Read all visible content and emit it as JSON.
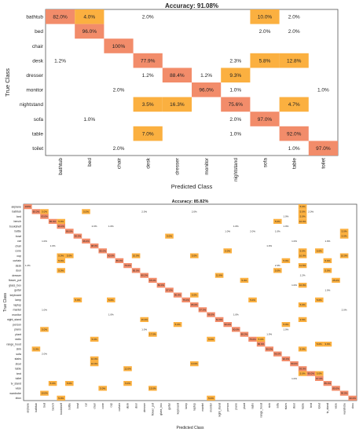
{
  "colors": {
    "high": "#f28c6a",
    "mid": "#fbb040",
    "low": "#fde08a",
    "grid": "#dddddd",
    "frame": "#555555",
    "text": "#222222"
  },
  "chart_data": [
    {
      "type": "heatmap",
      "title": "Accuracy: 91.08%",
      "xlabel": "Predicted Class",
      "ylabel": "True Class",
      "x_categories": [
        "bathtub",
        "bed",
        "chair",
        "desk",
        "dresser",
        "monitor",
        "nightstand",
        "sofa",
        "table",
        "toilet"
      ],
      "y_categories": [
        "bathtub",
        "bed",
        "chair",
        "desk",
        "dresser",
        "monitor",
        "nightstand",
        "sofa",
        "table",
        "toilet"
      ],
      "cells": [
        {
          "row": 0,
          "col": 0,
          "value": 82.0
        },
        {
          "row": 0,
          "col": 1,
          "value": 4.0
        },
        {
          "row": 0,
          "col": 3,
          "value": 2.0
        },
        {
          "row": 0,
          "col": 7,
          "value": 10.0
        },
        {
          "row": 0,
          "col": 8,
          "value": 2.0
        },
        {
          "row": 1,
          "col": 1,
          "value": 96.0
        },
        {
          "row": 1,
          "col": 7,
          "value": 2.0
        },
        {
          "row": 1,
          "col": 8,
          "value": 2.0
        },
        {
          "row": 2,
          "col": 2,
          "value": 100
        },
        {
          "row": 3,
          "col": 0,
          "value": 1.2
        },
        {
          "row": 3,
          "col": 3,
          "value": 77.9
        },
        {
          "row": 3,
          "col": 6,
          "value": 2.3
        },
        {
          "row": 3,
          "col": 7,
          "value": 5.8
        },
        {
          "row": 3,
          "col": 8,
          "value": 12.8
        },
        {
          "row": 4,
          "col": 3,
          "value": 1.2
        },
        {
          "row": 4,
          "col": 4,
          "value": 88.4
        },
        {
          "row": 4,
          "col": 5,
          "value": 1.2
        },
        {
          "row": 4,
          "col": 6,
          "value": 9.3
        },
        {
          "row": 5,
          "col": 2,
          "value": 2.0
        },
        {
          "row": 5,
          "col": 5,
          "value": 96.0
        },
        {
          "row": 5,
          "col": 6,
          "value": 1.0
        },
        {
          "row": 5,
          "col": 9,
          "value": 1.0
        },
        {
          "row": 6,
          "col": 3,
          "value": 3.5
        },
        {
          "row": 6,
          "col": 4,
          "value": 16.3
        },
        {
          "row": 6,
          "col": 6,
          "value": 75.6
        },
        {
          "row": 6,
          "col": 8,
          "value": 4.7
        },
        {
          "row": 7,
          "col": 1,
          "value": 1.0
        },
        {
          "row": 7,
          "col": 6,
          "value": 2.0
        },
        {
          "row": 7,
          "col": 7,
          "value": 97.0
        },
        {
          "row": 8,
          "col": 3,
          "value": 7.0
        },
        {
          "row": 8,
          "col": 6,
          "value": 1.0
        },
        {
          "row": 8,
          "col": 8,
          "value": 92.0
        },
        {
          "row": 9,
          "col": 2,
          "value": 2.0
        },
        {
          "row": 9,
          "col": 8,
          "value": 1.0
        },
        {
          "row": 9,
          "col": 9,
          "value": 97.0
        }
      ]
    },
    {
      "type": "heatmap",
      "title": "Accuracy: 85.82%",
      "xlabel": "Predicted Class",
      "ylabel": "True Class",
      "x_categories": [
        "airplane",
        "bathtub",
        "bed",
        "bench",
        "bookshelf",
        "bottle",
        "bowl",
        "car",
        "chair",
        "cone",
        "cup",
        "curtain",
        "desk",
        "door",
        "dresser",
        "flower_pot",
        "glass_box",
        "guitar",
        "keyboard",
        "lamp",
        "laptop",
        "mantel",
        "monitor",
        "night_stand",
        "person",
        "piano",
        "plant",
        "radio",
        "range_hood",
        "sink",
        "sofa",
        "stairs",
        "stool",
        "table",
        "tent",
        "toilet",
        "tv_stand",
        "vase",
        "wardrobe",
        "xbox"
      ],
      "y_categories": [
        "airplane",
        "bathtub",
        "bed",
        "bench",
        "bookshelf",
        "bottle",
        "bowl",
        "car",
        "chair",
        "cone",
        "cup",
        "curtain",
        "desk",
        "door",
        "dresser",
        "flower_pot",
        "glass_box",
        "guitar",
        "keyboard",
        "lamp",
        "laptop",
        "mantel",
        "monitor",
        "night_stand",
        "person",
        "piano",
        "plant",
        "radio",
        "range_hood",
        "sink",
        "sofa",
        "stairs",
        "stool",
        "table",
        "tent",
        "toilet",
        "tv_stand",
        "vase",
        "wardrobe",
        "xbox"
      ],
      "cells": [
        {
          "row": 0,
          "col": 0,
          "value": 100
        },
        {
          "row": 0,
          "col": 33,
          "value": 5.0
        },
        {
          "row": 1,
          "col": 1,
          "value": 80.0
        },
        {
          "row": 1,
          "col": 2,
          "value": 5.0
        },
        {
          "row": 1,
          "col": 7,
          "value": 5.0
        },
        {
          "row": 1,
          "col": 14,
          "value": 2.0
        },
        {
          "row": 1,
          "col": 20,
          "value": 2.0
        },
        {
          "row": 1,
          "col": 33,
          "value": 5.0
        },
        {
          "row": 1,
          "col": 34,
          "value": 2.0
        },
        {
          "row": 2,
          "col": 2,
          "value": 93.0
        },
        {
          "row": 2,
          "col": 31,
          "value": 1.0
        },
        {
          "row": 2,
          "col": 33,
          "value": 5.0
        },
        {
          "row": 3,
          "col": 3,
          "value": 85.0
        },
        {
          "row": 3,
          "col": 4,
          "value": 5.0
        },
        {
          "row": 3,
          "col": 30,
          "value": 5.0
        },
        {
          "row": 3,
          "col": 33,
          "value": 10.0
        },
        {
          "row": 4,
          "col": 4,
          "value": 96.0
        },
        {
          "row": 4,
          "col": 8,
          "value": 2.0
        },
        {
          "row": 4,
          "col": 10,
          "value": 1.0
        },
        {
          "row": 4,
          "col": 25,
          "value": 1.0
        },
        {
          "row": 4,
          "col": 31,
          "value": 1.0
        },
        {
          "row": 5,
          "col": 5,
          "value": 86.0
        },
        {
          "row": 5,
          "col": 24,
          "value": 1.0
        },
        {
          "row": 5,
          "col": 27,
          "value": 2.0
        },
        {
          "row": 5,
          "col": 30,
          "value": 1.0
        },
        {
          "row": 5,
          "col": 38,
          "value": 5.0
        },
        {
          "row": 6,
          "col": 6,
          "value": 90.0
        },
        {
          "row": 6,
          "col": 17,
          "value": 5.0
        },
        {
          "row": 6,
          "col": 38,
          "value": 5.0
        },
        {
          "row": 7,
          "col": 7,
          "value": 96.0
        },
        {
          "row": 7,
          "col": 2,
          "value": 1.0
        },
        {
          "row": 7,
          "col": 32,
          "value": 1.0
        },
        {
          "row": 7,
          "col": 36,
          "value": 1.0
        },
        {
          "row": 8,
          "col": 8,
          "value": 98.0
        },
        {
          "row": 8,
          "col": 3,
          "value": 1.0
        },
        {
          "row": 8,
          "col": 29,
          "value": 1.0
        },
        {
          "row": 9,
          "col": 9,
          "value": 85.0
        },
        {
          "row": 9,
          "col": 24,
          "value": 5.0
        },
        {
          "row": 9,
          "col": 33,
          "value": 5.0
        },
        {
          "row": 9,
          "col": 35,
          "value": 5.0
        },
        {
          "row": 10,
          "col": 10,
          "value": 60.0
        },
        {
          "row": 10,
          "col": 4,
          "value": 5.0
        },
        {
          "row": 10,
          "col": 5,
          "value": 5.0
        },
        {
          "row": 10,
          "col": 13,
          "value": 10.0
        },
        {
          "row": 10,
          "col": 20,
          "value": 5.0
        },
        {
          "row": 10,
          "col": 33,
          "value": 10.0
        },
        {
          "row": 10,
          "col": 38,
          "value": 10.0
        },
        {
          "row": 11,
          "col": 11,
          "value": 85.0
        },
        {
          "row": 11,
          "col": 4,
          "value": 5.0
        },
        {
          "row": 11,
          "col": 31,
          "value": 5.0
        },
        {
          "row": 11,
          "col": 36,
          "value": 5.0
        },
        {
          "row": 12,
          "col": 12,
          "value": 76.0
        },
        {
          "row": 12,
          "col": 0,
          "value": 1.2
        },
        {
          "row": 12,
          "col": 30,
          "value": 2.3
        },
        {
          "row": 12,
          "col": 33,
          "value": 11.6
        },
        {
          "row": 13,
          "col": 13,
          "value": 85.0
        },
        {
          "row": 13,
          "col": 4,
          "value": 5.0
        },
        {
          "row": 13,
          "col": 30,
          "value": 5.0
        },
        {
          "row": 13,
          "col": 36,
          "value": 5.0
        },
        {
          "row": 14,
          "col": 14,
          "value": 80.2
        },
        {
          "row": 14,
          "col": 23,
          "value": 11.6
        },
        {
          "row": 14,
          "col": 33,
          "value": 1.2
        },
        {
          "row": 15,
          "col": 15,
          "value": 65.0
        },
        {
          "row": 15,
          "col": 26,
          "value": 5.0
        },
        {
          "row": 15,
          "col": 37,
          "value": 25.0
        },
        {
          "row": 16,
          "col": 16,
          "value": 89.0
        },
        {
          "row": 16,
          "col": 32,
          "value": 1.0
        },
        {
          "row": 16,
          "col": 33,
          "value": 10.0
        },
        {
          "row": 17,
          "col": 17,
          "value": 97.0
        },
        {
          "row": 17,
          "col": 36,
          "value": 1.0
        },
        {
          "row": 18,
          "col": 18,
          "value": 90.0
        },
        {
          "row": 18,
          "col": 20,
          "value": 5.0
        },
        {
          "row": 19,
          "col": 19,
          "value": 75.0
        },
        {
          "row": 19,
          "col": 6,
          "value": 5.0
        },
        {
          "row": 19,
          "col": 10,
          "value": 5.0
        },
        {
          "row": 19,
          "col": 27,
          "value": 5.0
        },
        {
          "row": 19,
          "col": 35,
          "value": 5.0
        },
        {
          "row": 20,
          "col": 20,
          "value": 95.0
        },
        {
          "row": 20,
          "col": 33,
          "value": 5.0
        },
        {
          "row": 21,
          "col": 21,
          "value": 97.0
        },
        {
          "row": 21,
          "col": 2,
          "value": 1.0
        },
        {
          "row": 21,
          "col": 38,
          "value": 2.0
        },
        {
          "row": 22,
          "col": 22,
          "value": 96.0
        },
        {
          "row": 22,
          "col": 10,
          "value": 1.0
        },
        {
          "row": 22,
          "col": 25,
          "value": 1.0
        },
        {
          "row": 23,
          "col": 23,
          "value": 61.6
        },
        {
          "row": 23,
          "col": 14,
          "value": 16.3
        },
        {
          "row": 23,
          "col": 33,
          "value": 3.5
        },
        {
          "row": 24,
          "col": 24,
          "value": 90.0
        },
        {
          "row": 24,
          "col": 18,
          "value": 5.0
        },
        {
          "row": 24,
          "col": 31,
          "value": 5.0
        },
        {
          "row": 25,
          "col": 25,
          "value": 90.0
        },
        {
          "row": 25,
          "col": 2,
          "value": 5.0
        },
        {
          "row": 25,
          "col": 14,
          "value": 1.0
        },
        {
          "row": 25,
          "col": 31,
          "value": 1.0
        },
        {
          "row": 26,
          "col": 26,
          "value": 80.0
        },
        {
          "row": 26,
          "col": 15,
          "value": 17.0
        },
        {
          "row": 26,
          "col": 29,
          "value": 1.0
        },
        {
          "row": 27,
          "col": 27,
          "value": 75.0
        },
        {
          "row": 27,
          "col": 8,
          "value": 5.0
        },
        {
          "row": 27,
          "col": 22,
          "value": 5.0
        },
        {
          "row": 27,
          "col": 28,
          "value": 5.0
        },
        {
          "row": 28,
          "col": 28,
          "value": 86.0
        },
        {
          "row": 28,
          "col": 35,
          "value": 5.0
        },
        {
          "row": 28,
          "col": 36,
          "value": 3.0
        },
        {
          "row": 29,
          "col": 29,
          "value": 90.0
        },
        {
          "row": 29,
          "col": 1,
          "value": 5.0
        },
        {
          "row": 29,
          "col": 33,
          "value": 5.0
        },
        {
          "row": 30,
          "col": 30,
          "value": 96.0
        },
        {
          "row": 30,
          "col": 2,
          "value": 2.0
        },
        {
          "row": 31,
          "col": 31,
          "value": 90.0
        },
        {
          "row": 31,
          "col": 8,
          "value": 10.0
        },
        {
          "row": 32,
          "col": 32,
          "value": 80.0
        },
        {
          "row": 32,
          "col": 8,
          "value": 10.0
        },
        {
          "row": 32,
          "col": 20,
          "value": 10.0
        },
        {
          "row": 33,
          "col": 33,
          "value": 93.0
        },
        {
          "row": 33,
          "col": 12,
          "value": 12.0
        },
        {
          "row": 34,
          "col": 34,
          "value": 90.0
        },
        {
          "row": 34,
          "col": 33,
          "value": 5.0
        },
        {
          "row": 34,
          "col": 35,
          "value": 5.0
        },
        {
          "row": 35,
          "col": 35,
          "value": 97.0
        },
        {
          "row": 35,
          "col": 32,
          "value": 1.0
        },
        {
          "row": 36,
          "col": 36,
          "value": 85.0
        },
        {
          "row": 36,
          "col": 3,
          "value": 5.0
        },
        {
          "row": 36,
          "col": 5,
          "value": 5.0
        },
        {
          "row": 36,
          "col": 12,
          "value": 5.0
        },
        {
          "row": 37,
          "col": 37,
          "value": 80.0
        },
        {
          "row": 37,
          "col": 15,
          "value": 15.0
        },
        {
          "row": 37,
          "col": 9,
          "value": 5.0
        },
        {
          "row": 38,
          "col": 38,
          "value": 90.0
        },
        {
          "row": 38,
          "col": 2,
          "value": 10.0
        },
        {
          "row": 39,
          "col": 39,
          "value": 90.0
        },
        {
          "row": 39,
          "col": 4,
          "value": 5.0
        },
        {
          "row": 39,
          "col": 22,
          "value": 5.0
        }
      ]
    }
  ]
}
